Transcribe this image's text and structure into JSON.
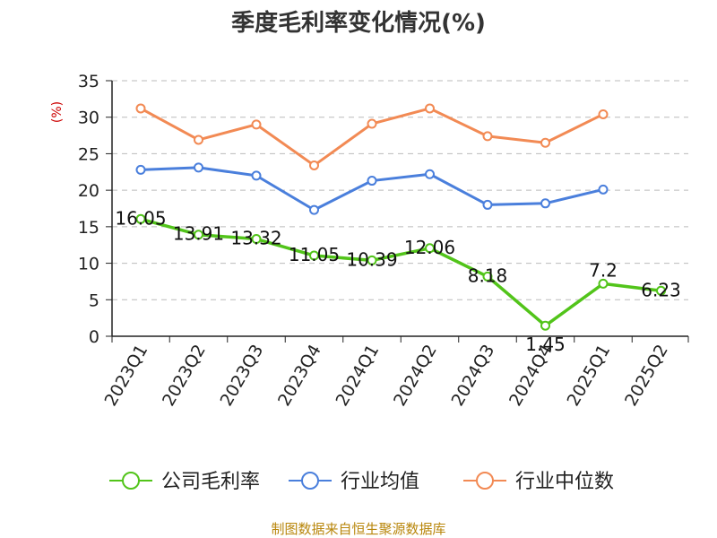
{
  "chart_data": {
    "type": "line",
    "title": "季度毛利率变化情况(%)",
    "ylabel": "(%)",
    "xlabel": "",
    "ylim": [
      0,
      35
    ],
    "yticks": [
      0,
      5,
      10,
      15,
      20,
      25,
      30,
      35
    ],
    "grid": true,
    "legend_position": "bottom",
    "categories": [
      "2023Q1",
      "2023Q2",
      "2023Q3",
      "2023Q4",
      "2024Q1",
      "2024Q2",
      "2024Q3",
      "2024Q4",
      "2025Q1",
      "2025Q2"
    ],
    "series": [
      {
        "name": "公司毛利率",
        "color": "#52c41a",
        "values": [
          16.05,
          13.91,
          13.32,
          11.05,
          10.39,
          12.06,
          8.18,
          1.45,
          7.2,
          6.23
        ],
        "labels": [
          "16.05",
          "13.91",
          "13.32",
          "11.05",
          "10.39",
          "12.06",
          "8.18",
          "1.45",
          "7.2",
          "6.23"
        ]
      },
      {
        "name": "行业均值",
        "color": "#4a7fdc",
        "values": [
          22.8,
          23.1,
          22.0,
          17.3,
          21.3,
          22.2,
          18.0,
          18.2,
          20.1,
          null
        ]
      },
      {
        "name": "行业中位数",
        "color": "#f28a54",
        "values": [
          31.2,
          26.9,
          29.0,
          23.4,
          29.1,
          31.2,
          27.4,
          26.5,
          30.4,
          null
        ]
      }
    ]
  },
  "source": "制图数据来自恒生聚源数据库"
}
